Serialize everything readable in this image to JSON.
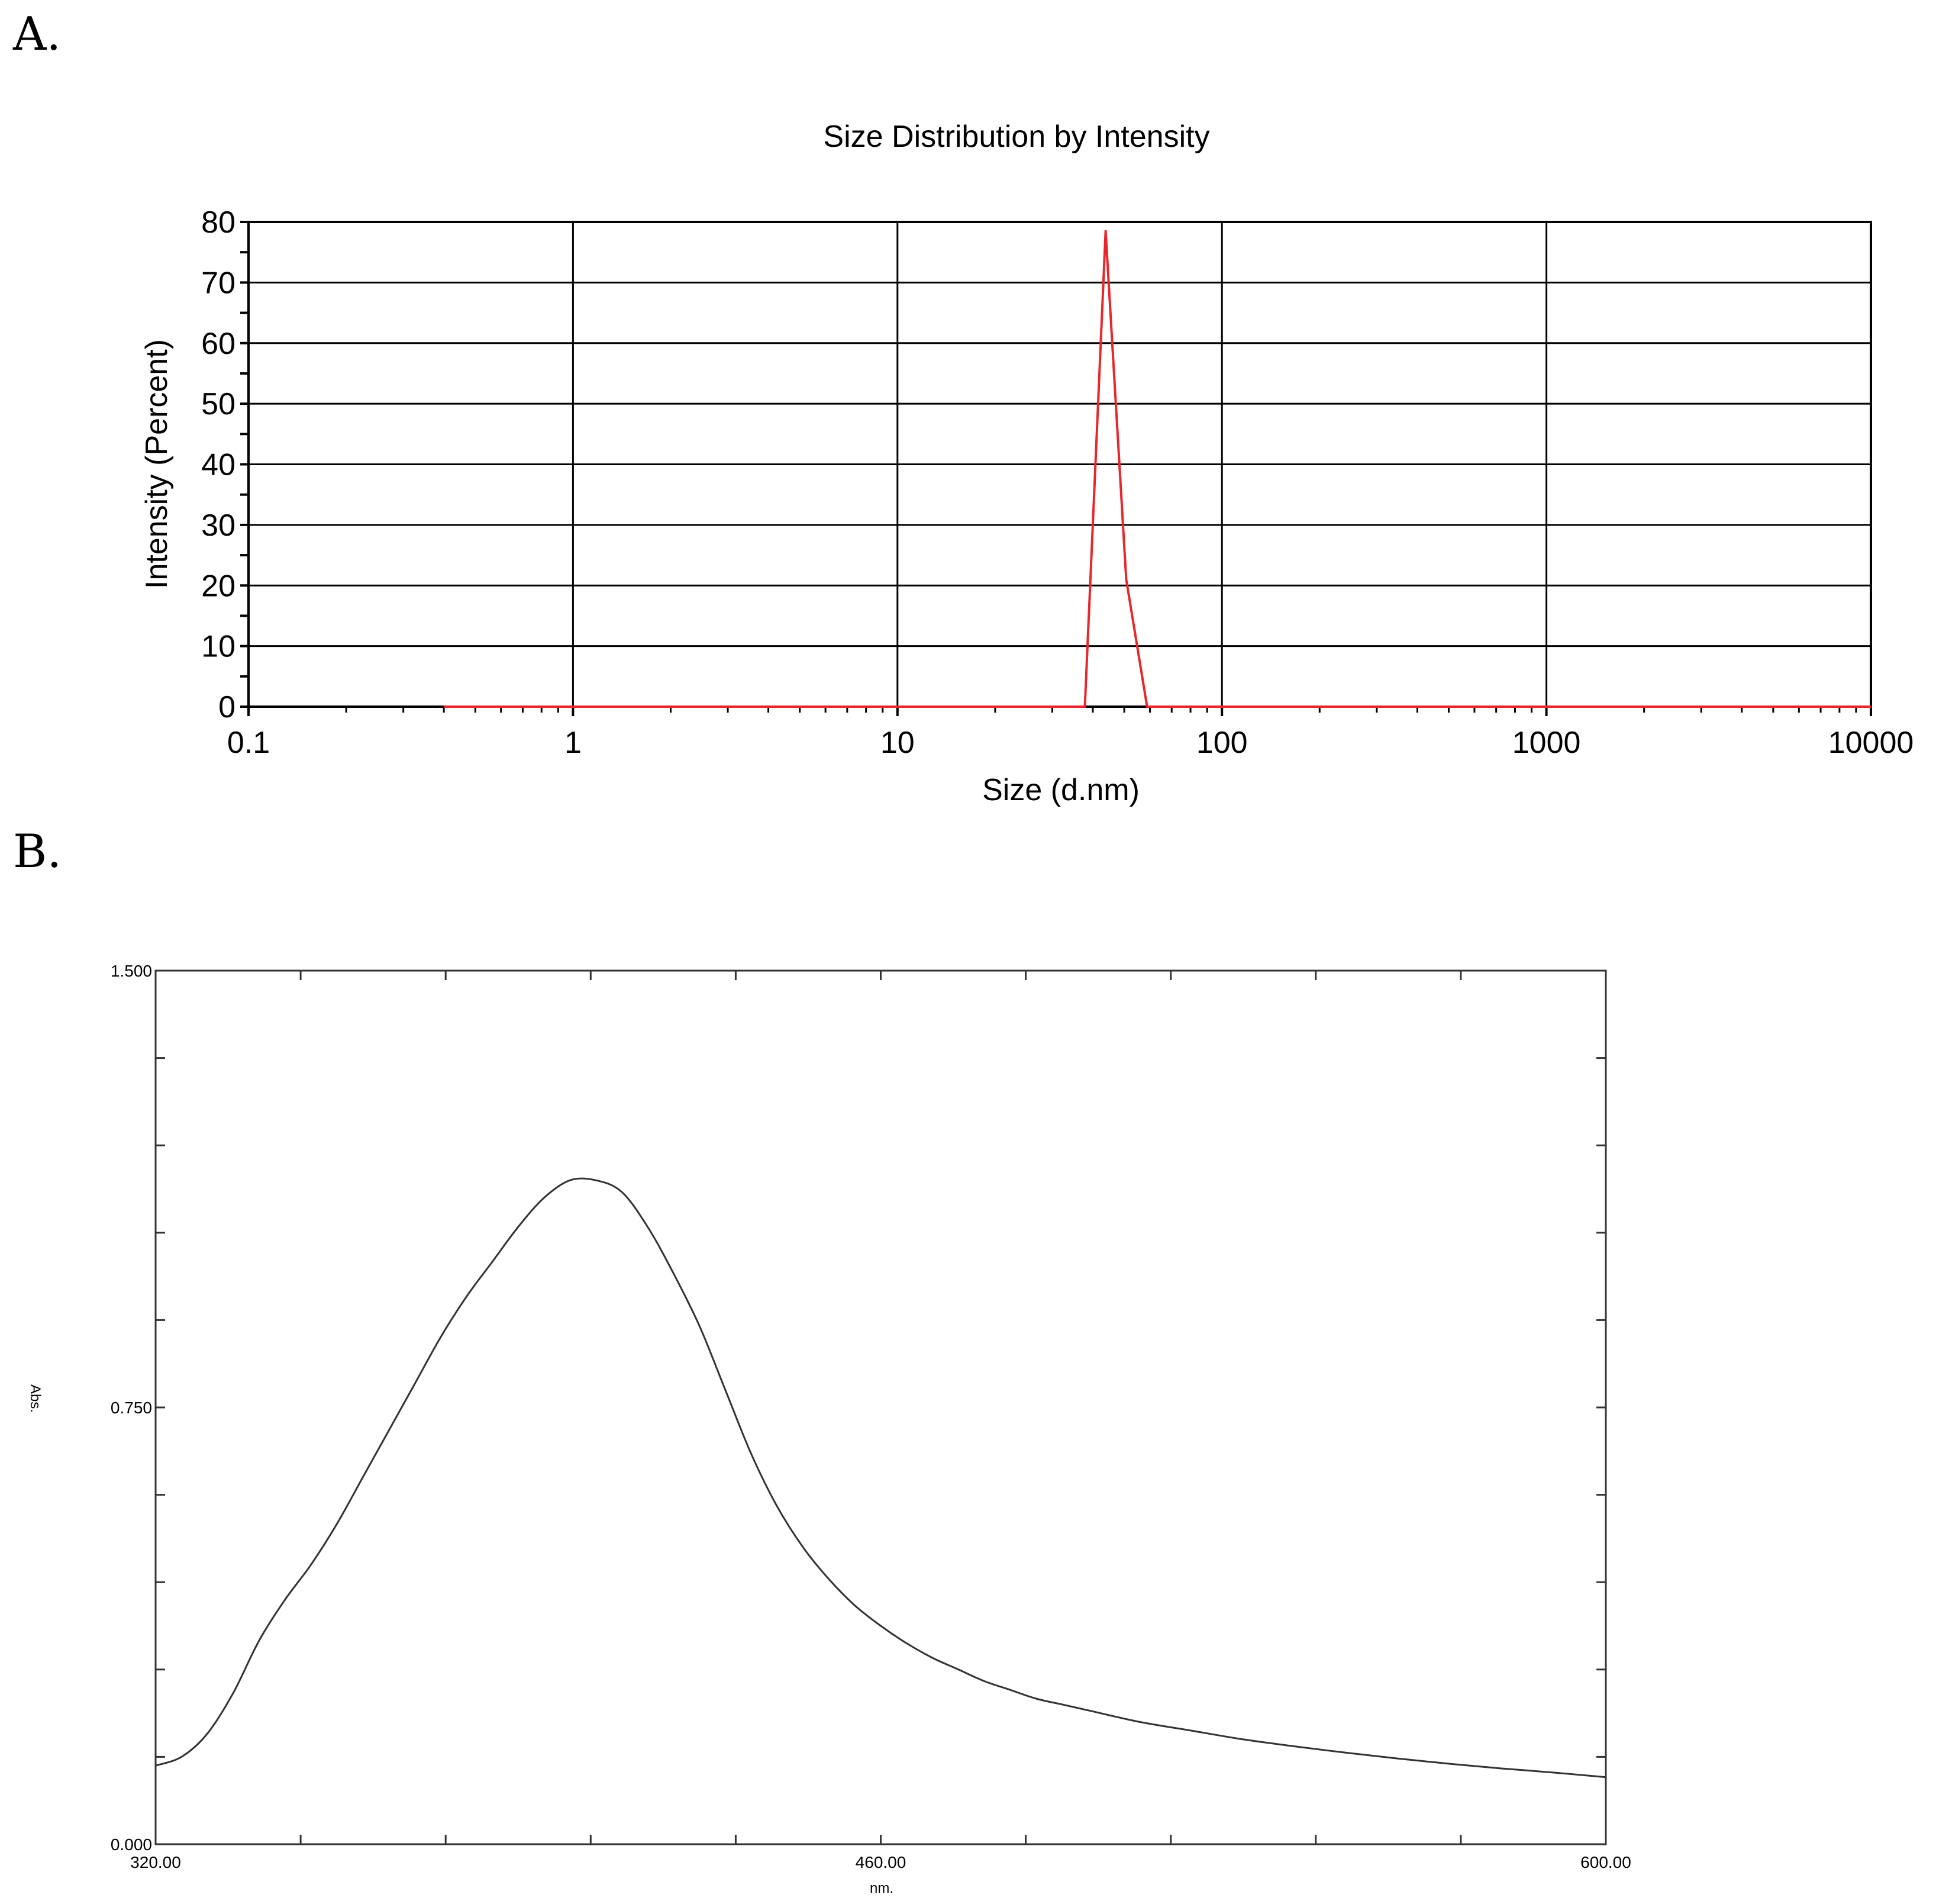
{
  "panels": {
    "a_label": "A.",
    "b_label": "B."
  },
  "chart_data": [
    {
      "type": "line",
      "title": "Size Distribution by Intensity",
      "xlabel": "Size (d.nm)",
      "ylabel": "Intensity (Percent)",
      "x_scale": "log",
      "xlim": [
        0.1,
        10000
      ],
      "ylim": [
        0,
        80
      ],
      "x_ticks": [
        "0.1",
        "1",
        "10",
        "100",
        "1000",
        "10000"
      ],
      "y_ticks": [
        "0",
        "10",
        "20",
        "30",
        "40",
        "50",
        "60",
        "70",
        "80"
      ],
      "grid": true,
      "colors": {
        "line": "#e8262b"
      },
      "x": [
        0.4,
        10,
        37.8,
        43.8,
        50.7,
        58.8,
        100,
        1000,
        10000
      ],
      "y": [
        0,
        0,
        0,
        78.5,
        21,
        0,
        0,
        0,
        0
      ]
    },
    {
      "type": "line",
      "title": "",
      "xlabel": "nm.",
      "ylabel": "Abs.",
      "xlim": [
        320,
        600
      ],
      "ylim": [
        0,
        1.5
      ],
      "x_ticks": [
        "320.00",
        "460.00",
        "600.00"
      ],
      "y_ticks": [
        "0.000",
        "0.750",
        "1.500"
      ],
      "grid": false,
      "colors": {
        "line": "#333333"
      },
      "x": [
        320,
        325,
        330,
        335,
        340,
        345,
        350,
        355,
        360,
        365,
        370,
        375,
        380,
        385,
        390,
        395,
        400,
        405,
        410,
        415,
        420,
        425,
        430,
        435,
        440,
        445,
        450,
        455,
        460,
        465,
        470,
        475,
        480,
        485,
        490,
        495,
        500,
        510,
        520,
        530,
        540,
        550,
        560,
        570,
        580,
        590,
        600
      ],
      "y": [
        0.135,
        0.15,
        0.19,
        0.26,
        0.35,
        0.42,
        0.48,
        0.55,
        0.63,
        0.71,
        0.79,
        0.87,
        0.94,
        1.0,
        1.06,
        1.11,
        1.14,
        1.14,
        1.12,
        1.06,
        0.98,
        0.89,
        0.78,
        0.67,
        0.58,
        0.51,
        0.455,
        0.41,
        0.375,
        0.345,
        0.32,
        0.3,
        0.28,
        0.265,
        0.25,
        0.24,
        0.23,
        0.21,
        0.195,
        0.18,
        0.168,
        0.157,
        0.147,
        0.138,
        0.13,
        0.123,
        0.115
      ]
    }
  ]
}
